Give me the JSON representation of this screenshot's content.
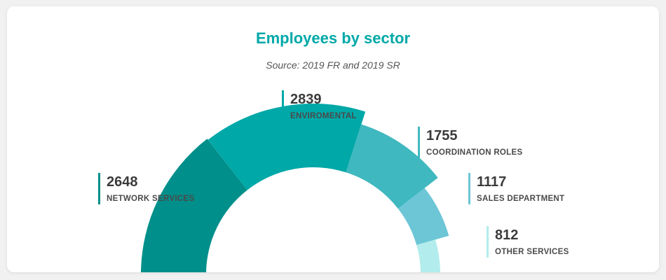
{
  "chart_data": {
    "type": "pie",
    "title": "Employees by sector",
    "subtitle": "Source: 2019 FR and 2019 SR",
    "series": [
      {
        "name": "NETWORK SERVICES",
        "value": 2648,
        "color": "#008f8a"
      },
      {
        "name": "ENVIROMENTAL",
        "value": 2839,
        "color": "#00a8a8"
      },
      {
        "name": "COORDINATION ROLES",
        "value": 1755,
        "color": "#3fb8bf"
      },
      {
        "name": "SALES DEPARTMENT",
        "value": 1117,
        "color": "#6cc6d6"
      },
      {
        "name": "OTHER SERVICES",
        "value": 812,
        "color": "#b3ecec"
      }
    ]
  },
  "colors": {
    "title": "#00a8a8"
  }
}
